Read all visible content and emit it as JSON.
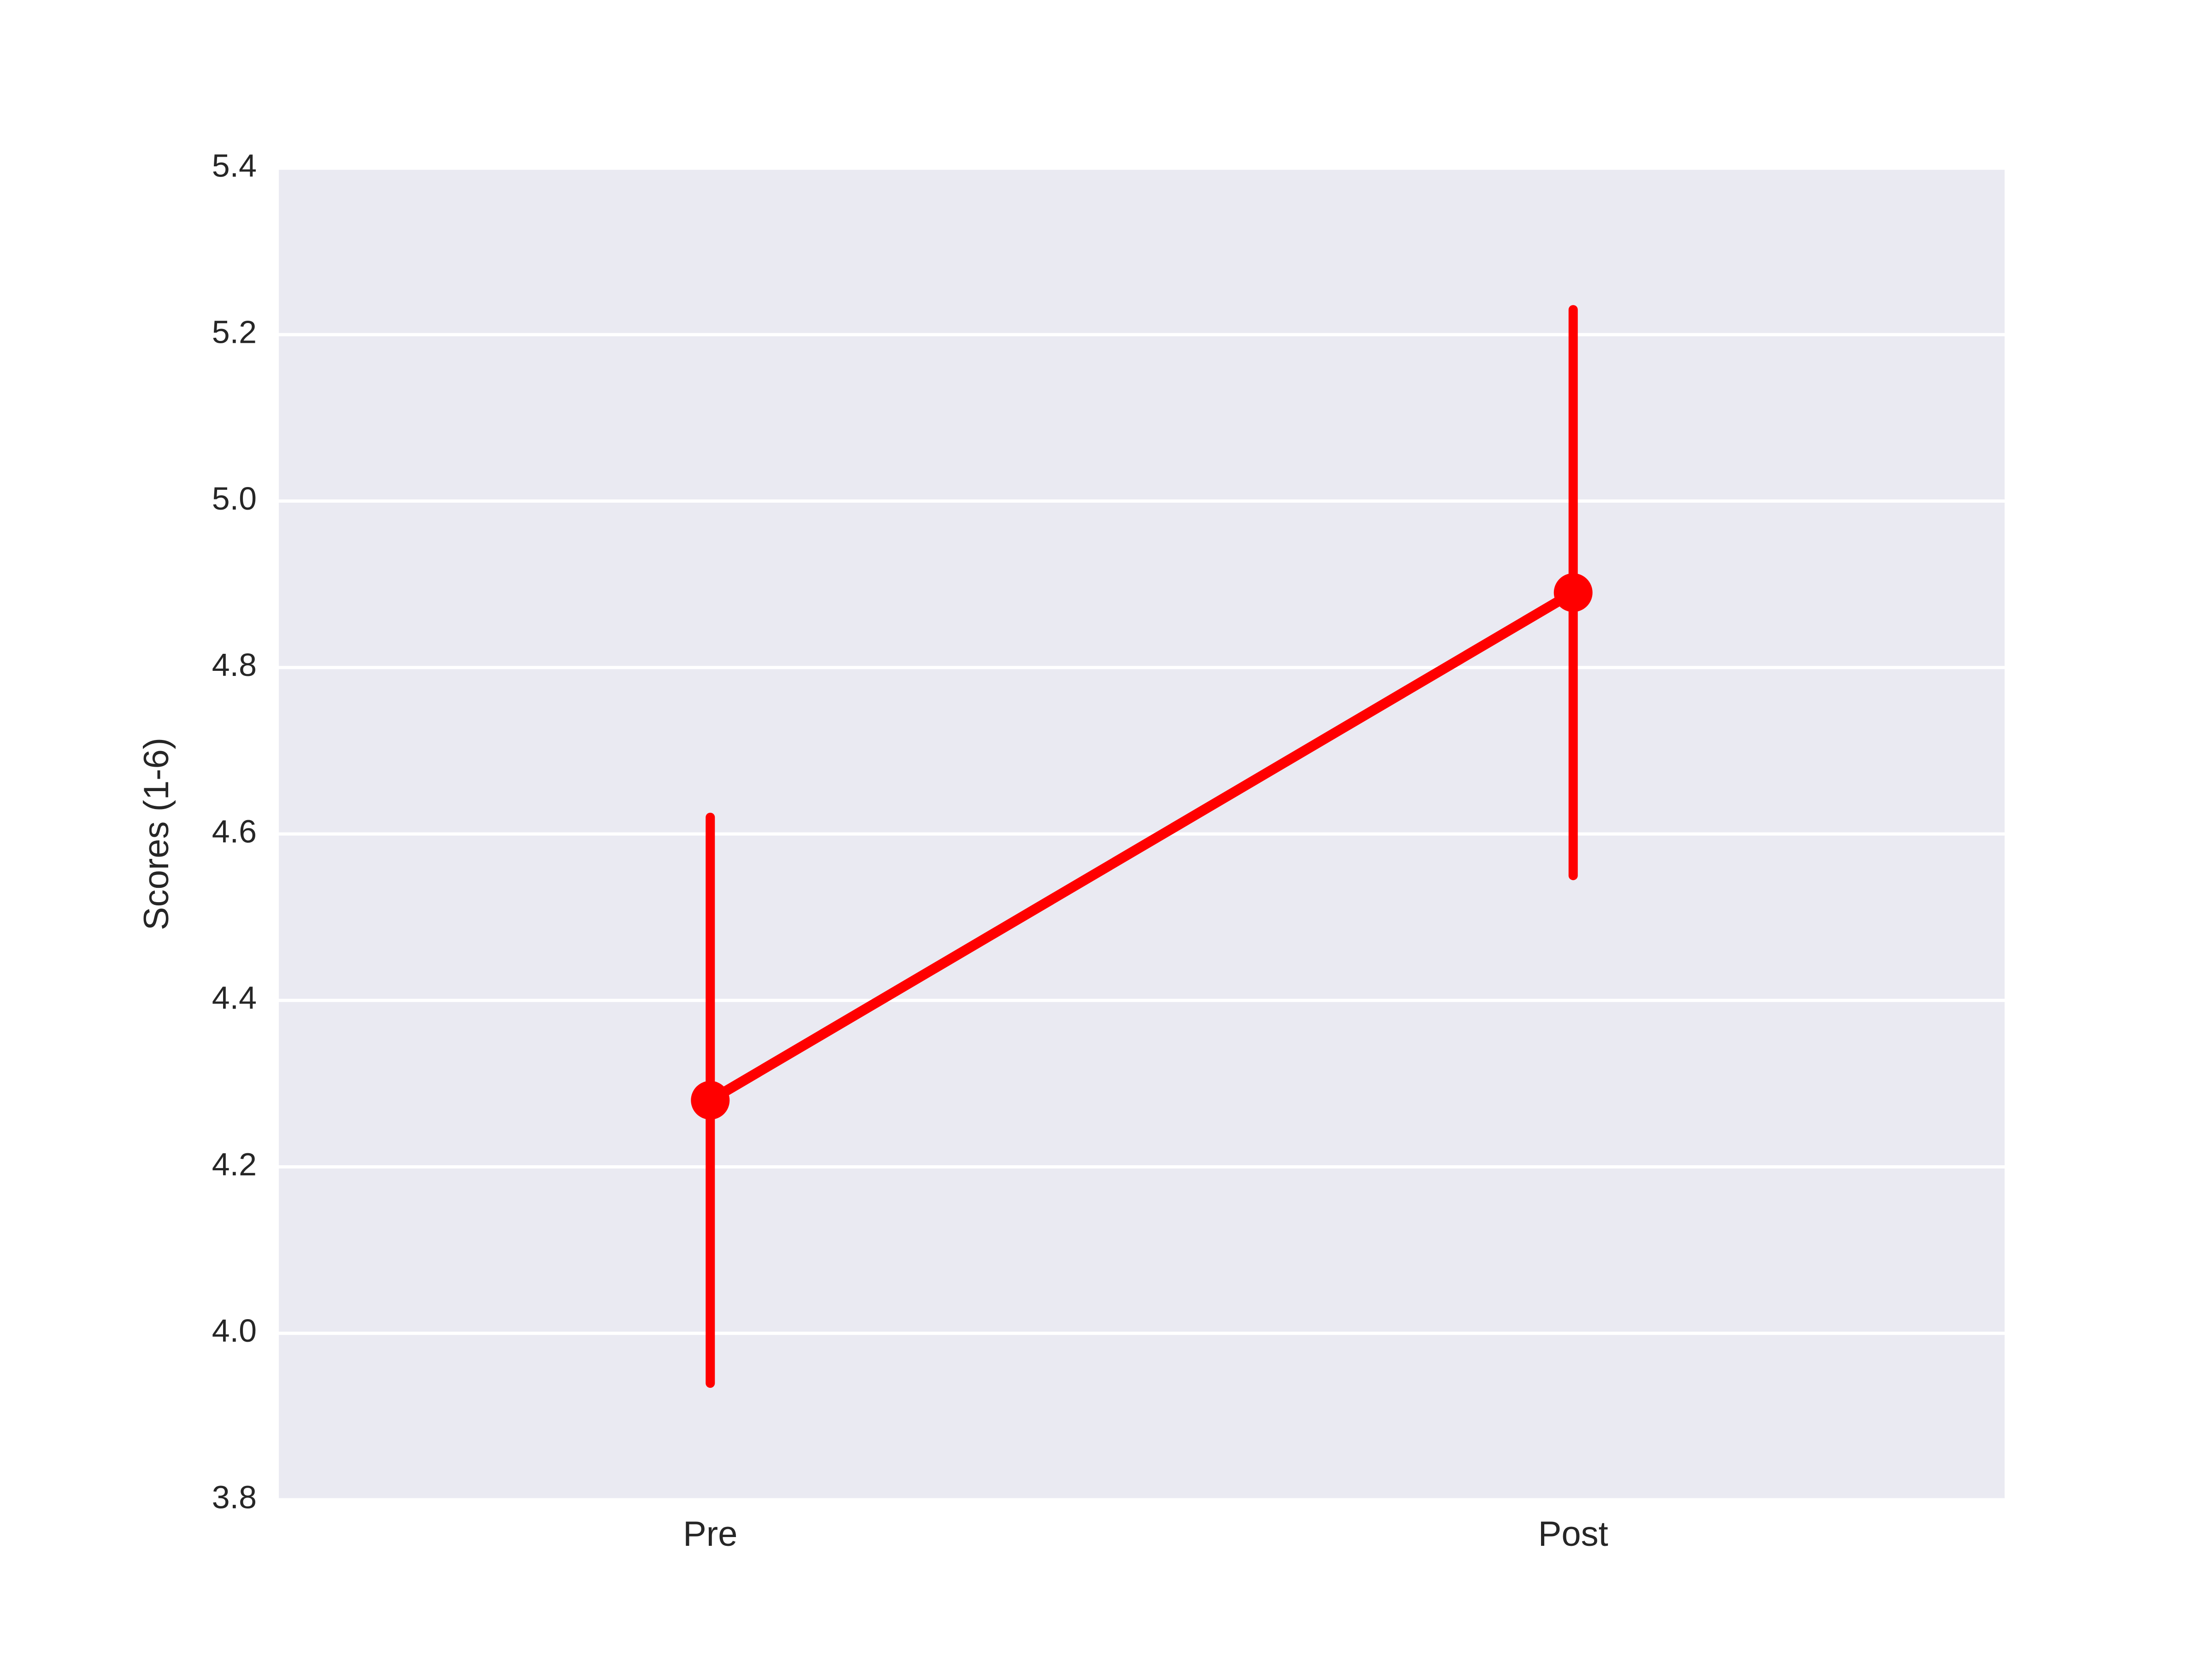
{
  "chart_data": {
    "type": "line",
    "title": "",
    "xlabel": "",
    "ylabel": "Scores (1-6)",
    "categories": [
      "Pre",
      "Post"
    ],
    "series": [
      {
        "values": [
          4.28,
          4.89
        ],
        "ci_low": [
          3.94,
          4.55
        ],
        "ci_high": [
          4.62,
          5.23
        ],
        "color": "#ff0000"
      }
    ],
    "ylim": [
      3.8,
      5.4
    ],
    "yticks": [
      3.8,
      4.0,
      4.2,
      4.4,
      4.6,
      4.8,
      5.0,
      5.2,
      5.4
    ],
    "ytick_labels": [
      "3.8",
      "4.0",
      "4.2",
      "4.4",
      "4.6",
      "4.8",
      "5.0",
      "5.2",
      "5.4"
    ],
    "grid": "horizontal",
    "legend": "none",
    "colors": {
      "plot_background": "#eaeaf2",
      "grid": "#ffffff",
      "text": "#262626"
    }
  }
}
